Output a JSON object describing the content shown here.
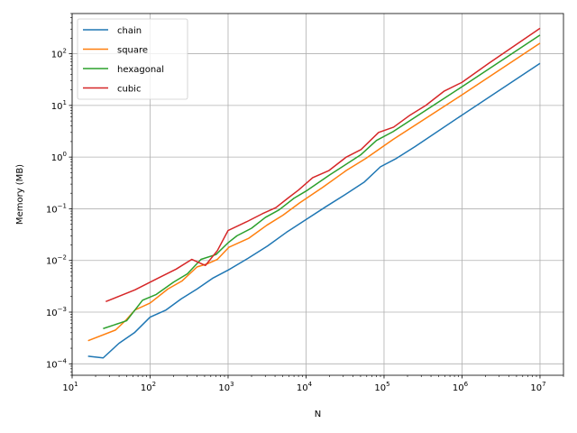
{
  "chart_data": {
    "type": "line",
    "title": "",
    "xlabel": "N",
    "ylabel": "Memory (MB)",
    "xscale": "log",
    "yscale": "log",
    "xlim": [
      10,
      20000000
    ],
    "ylim": [
      6e-05,
      600
    ],
    "grid": true,
    "legend_position": "top-left",
    "x_ticks": [
      {
        "value": 10,
        "base": "10",
        "exp": "1"
      },
      {
        "value": 100,
        "base": "10",
        "exp": "2"
      },
      {
        "value": 1000,
        "base": "10",
        "exp": "3"
      },
      {
        "value": 10000,
        "base": "10",
        "exp": "4"
      },
      {
        "value": 100000,
        "base": "10",
        "exp": "5"
      },
      {
        "value": 1000000,
        "base": "10",
        "exp": "6"
      },
      {
        "value": 10000000,
        "base": "10",
        "exp": "7"
      }
    ],
    "y_ticks": [
      {
        "value": 0.0001,
        "base": "10",
        "exp": "−4"
      },
      {
        "value": 0.001,
        "base": "10",
        "exp": "−3"
      },
      {
        "value": 0.01,
        "base": "10",
        "exp": "−2"
      },
      {
        "value": 0.1,
        "base": "10",
        "exp": "−1"
      },
      {
        "value": 1,
        "base": "10",
        "exp": "0"
      },
      {
        "value": 10,
        "base": "10",
        "exp": "1"
      },
      {
        "value": 100,
        "base": "10",
        "exp": "2"
      }
    ],
    "series": [
      {
        "name": "chain",
        "color": "#1f77b4",
        "x": [
          16,
          25,
          40,
          63,
          100,
          160,
          250,
          400,
          630,
          1000,
          1800,
          3200,
          5600,
          10000,
          18000,
          32000,
          56000,
          90000,
          140000,
          250000,
          1000000,
          10000000
        ],
        "y": [
          0.00014,
          0.00013,
          0.00025,
          0.0004,
          0.0008,
          0.0011,
          0.0018,
          0.0028,
          0.0045,
          0.0065,
          0.011,
          0.019,
          0.035,
          0.062,
          0.11,
          0.19,
          0.33,
          0.65,
          0.92,
          1.6,
          6.5,
          65
        ]
      },
      {
        "name": "square",
        "color": "#ff7f0e",
        "x": [
          16,
          36,
          49,
          64,
          100,
          169,
          256,
          400,
          529,
          729,
          1024,
          1849,
          3136,
          5041,
          8281,
          16384,
          32761,
          59049,
          131044,
          1000000,
          10000000
        ],
        "y": [
          0.00028,
          0.00045,
          0.0007,
          0.0011,
          0.0015,
          0.0028,
          0.004,
          0.0075,
          0.0085,
          0.0105,
          0.018,
          0.027,
          0.048,
          0.075,
          0.13,
          0.26,
          0.55,
          0.95,
          2.2,
          16,
          160
        ]
      },
      {
        "name": "hexagonal",
        "color": "#2ca02c",
        "x": [
          25,
          50,
          80,
          120,
          200,
          300,
          450,
          700,
          1000,
          1300,
          2000,
          3000,
          4500,
          7000,
          10000,
          20000,
          50000,
          80000,
          130000,
          1000000,
          10000000
        ],
        "y": [
          0.00048,
          0.00068,
          0.0017,
          0.0022,
          0.0038,
          0.0055,
          0.0105,
          0.013,
          0.022,
          0.03,
          0.042,
          0.068,
          0.095,
          0.16,
          0.22,
          0.45,
          1.1,
          2.1,
          3.1,
          23,
          230
        ]
      },
      {
        "name": "cubic",
        "color": "#d62728",
        "x": [
          27,
          64,
          125,
          216,
          343,
          512,
          729,
          1000,
          1728,
          2744,
          4096,
          5832,
          8000,
          12167,
          19683,
          32768,
          50653,
          85184,
          132651,
          216000,
          343000,
          592704,
          1000000,
          2197000,
          10000000
        ],
        "y": [
          0.0016,
          0.0027,
          0.0045,
          0.0068,
          0.0105,
          0.008,
          0.0155,
          0.038,
          0.056,
          0.08,
          0.105,
          0.16,
          0.23,
          0.4,
          0.55,
          1.0,
          1.4,
          3.0,
          3.8,
          6.5,
          10,
          19,
          28,
          65,
          310
        ]
      }
    ]
  }
}
